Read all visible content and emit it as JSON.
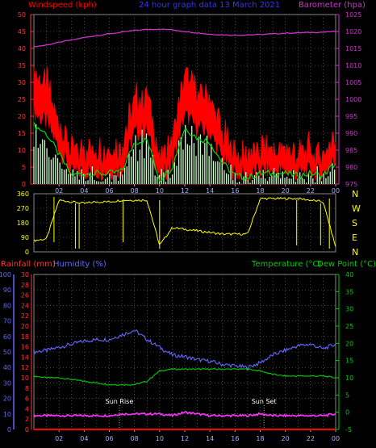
{
  "header": {
    "windspeed_label": "Windspeed (kph)",
    "center_title": "24 hour graph data   13 March 2021",
    "barometer_label": "Barometer (hpa)"
  },
  "lower_header": {
    "rainfall_label": "Rainfall (mm)",
    "humidity_label": "Humidity (%)",
    "temperature_label": "Temperature (°C)",
    "dewpoint_label": "Dew Point (°C)"
  },
  "annotations": {
    "sunrise_label": "Sun Rise",
    "sunset_label": "Sun Set"
  },
  "colors": {
    "windspeed": "#ff0000",
    "gust_avg": "#00dd00",
    "wind_fill": "#ccffcc",
    "barometer": "#cc33cc",
    "direction": "#ffff00",
    "humidity": "#6666ff",
    "temperature": "#00cc00",
    "dewpoint": "#ff33ff",
    "rainfall": "#ff0000",
    "axis_rain": "#ff3333",
    "axis_hum": "#6666ff",
    "axis_temp": "#00cc00"
  },
  "chart_data": [
    {
      "type": "area",
      "panel": "wind-barometer",
      "x_ticks": [
        "02",
        "04",
        "06",
        "08",
        "10",
        "12",
        "14",
        "16",
        "18",
        "20",
        "22",
        "00"
      ],
      "left_axis": {
        "label": "Windspeed (kph)",
        "ylim": [
          0,
          50
        ],
        "ticks": [
          0,
          5,
          10,
          15,
          20,
          25,
          30,
          35,
          40,
          45,
          50
        ]
      },
      "right_axis": {
        "label": "Barometer (hpa)",
        "ylim": [
          975,
          1025
        ],
        "ticks": [
          975,
          980,
          985,
          990,
          995,
          1000,
          1005,
          1010,
          1015,
          1020,
          1025
        ]
      },
      "x": [
        0,
        1,
        2,
        3,
        4,
        5,
        6,
        7,
        8,
        9,
        10,
        11,
        12,
        13,
        14,
        15,
        16,
        17,
        18,
        19,
        20,
        21,
        22,
        23,
        24
      ],
      "series": [
        {
          "name": "Windspeed (kph)",
          "axis": "left",
          "values": [
            28,
            24,
            14,
            4,
            5,
            5,
            5,
            6,
            20,
            21,
            2,
            8,
            27,
            22,
            20,
            10,
            4,
            3,
            5,
            5,
            5,
            4,
            5,
            4,
            10
          ]
        },
        {
          "name": "Barometer (hpa)",
          "axis": "right",
          "values": [
            1015.5,
            1016,
            1016.8,
            1017.5,
            1018.2,
            1018.8,
            1019.3,
            1019.8,
            1020.3,
            1020.6,
            1020.7,
            1020.5,
            1020.0,
            1019.6,
            1019.2,
            1019.0,
            1018.9,
            1019.0,
            1019.1,
            1019.3,
            1019.5,
            1019.6,
            1019.7,
            1019.8,
            1020.0
          ]
        }
      ],
      "grid": true
    },
    {
      "type": "line",
      "panel": "wind-direction",
      "x_ticks": [
        "02",
        "04",
        "06",
        "08",
        "10",
        "12",
        "14",
        "16",
        "18",
        "20",
        "22",
        "00"
      ],
      "left_axis": {
        "ylim": [
          0,
          360
        ],
        "ticks": [
          0,
          90,
          180,
          270,
          360
        ]
      },
      "right_labels": [
        "N",
        "W",
        "S",
        "E",
        "N"
      ],
      "x": [
        0,
        1,
        2,
        3,
        4,
        5,
        6,
        7,
        8,
        9,
        10,
        11,
        12,
        13,
        14,
        15,
        16,
        17,
        18,
        19,
        20,
        21,
        22,
        23,
        24
      ],
      "series": [
        {
          "name": "Wind Direction",
          "values": [
            70,
            80,
            320,
            310,
            300,
            310,
            310,
            320,
            320,
            320,
            40,
            150,
            140,
            130,
            120,
            110,
            110,
            110,
            330,
            330,
            330,
            330,
            320,
            310,
            30
          ]
        }
      ],
      "grid": true
    },
    {
      "type": "line",
      "panel": "temperature-humidity",
      "x_ticks": [
        "02",
        "04",
        "06",
        "08",
        "10",
        "12",
        "14",
        "16",
        "18",
        "20",
        "22",
        "00"
      ],
      "rain_axis": {
        "label": "Rainfall (mm)",
        "ylim": [
          0,
          30
        ],
        "ticks": [
          0,
          2,
          4,
          6,
          8,
          10,
          12,
          14,
          16,
          18,
          20,
          22,
          24,
          26,
          28,
          30
        ]
      },
      "humidity_axis": {
        "label": "Humidity (%)",
        "ylim": [
          0,
          100
        ],
        "ticks": [
          0,
          10,
          20,
          30,
          40,
          50,
          60,
          70,
          80,
          90,
          100
        ]
      },
      "temp_axis": {
        "label": "Temperature (°C)",
        "ylim": [
          -5,
          40
        ],
        "ticks": [
          -5,
          0,
          5,
          10,
          15,
          20,
          25,
          30,
          35,
          40
        ]
      },
      "x": [
        0,
        1,
        2,
        3,
        4,
        5,
        6,
        7,
        8,
        9,
        10,
        11,
        12,
        13,
        14,
        15,
        16,
        17,
        18,
        19,
        20,
        21,
        22,
        23,
        24
      ],
      "series": [
        {
          "name": "Humidity (%)",
          "axis": "humidity",
          "values": [
            50,
            51,
            53,
            55,
            57,
            58,
            58,
            61,
            64,
            58,
            53,
            48,
            47,
            45,
            44,
            42,
            41,
            40,
            43,
            48,
            51,
            54,
            55,
            52,
            55
          ]
        },
        {
          "name": "Temperature (°C)",
          "axis": "temp",
          "values": [
            10.5,
            10,
            10,
            9.5,
            9,
            8.5,
            8,
            8,
            8,
            9,
            12,
            12.5,
            12.5,
            12.5,
            12.5,
            12.5,
            12.5,
            12.5,
            12,
            11,
            10.5,
            10.5,
            10.5,
            10.5,
            10
          ]
        },
        {
          "name": "Dew Point (°C)",
          "axis": "temp",
          "values": [
            -1,
            -1,
            -1,
            -1,
            -1,
            -1,
            -1,
            -0.5,
            -0.5,
            -0.5,
            -0.5,
            -1,
            0,
            -0.5,
            -1,
            -1,
            -1,
            -1,
            -0.5,
            -1,
            -1,
            -1,
            -1,
            -1,
            -0.5
          ]
        },
        {
          "name": "Rainfall (mm)",
          "axis": "rain",
          "values": [
            0,
            0,
            0,
            0,
            0,
            0,
            0,
            0,
            0,
            0,
            0,
            0,
            0,
            0,
            0,
            0,
            0,
            0,
            0,
            0,
            0,
            0,
            0,
            0,
            0
          ]
        }
      ],
      "markers": [
        {
          "label": "Sun Rise",
          "x": 6.8
        },
        {
          "label": "Sun Set",
          "x": 18.3
        }
      ],
      "grid": true
    }
  ]
}
